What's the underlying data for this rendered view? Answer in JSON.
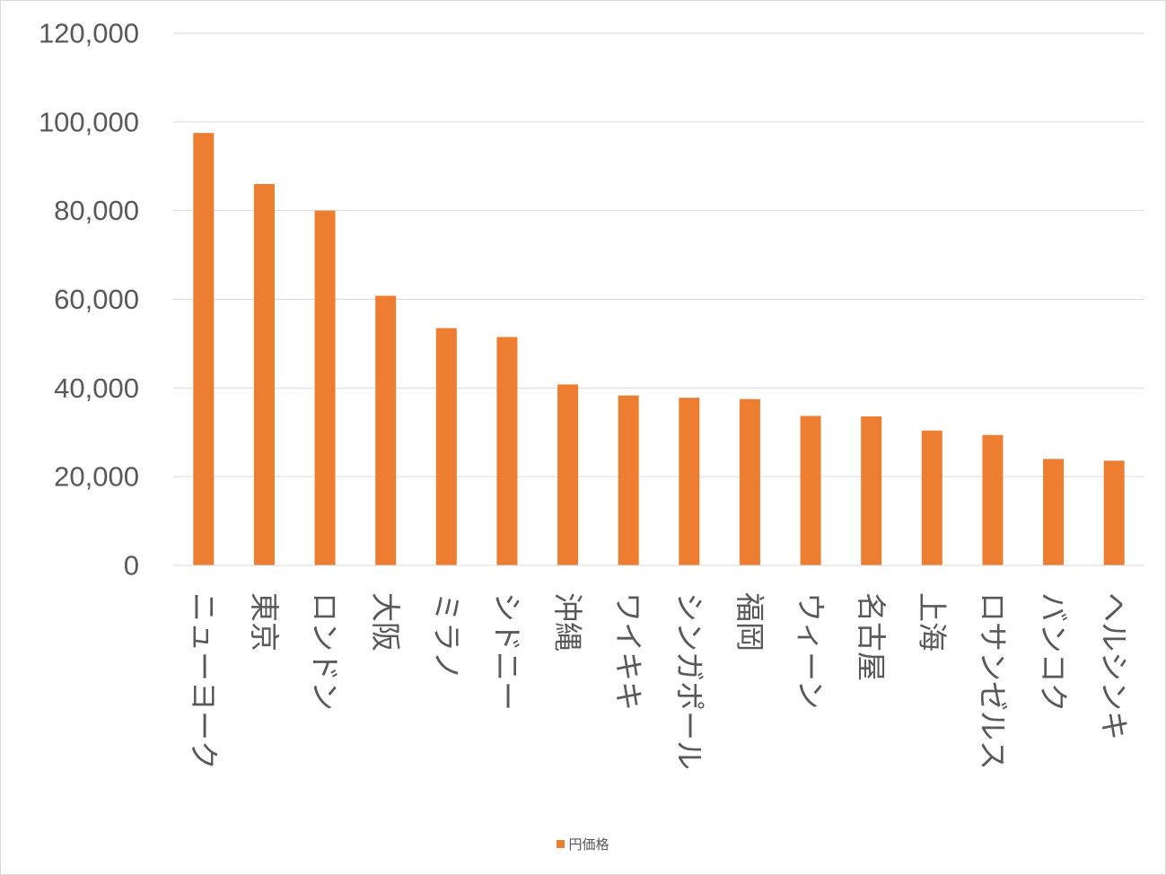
{
  "chart_data": {
    "type": "bar",
    "categories": [
      "ニューヨーク",
      "東京",
      "ロンドン",
      "大阪",
      "ミラノ",
      "シドニー",
      "沖縄",
      "ワイキキ",
      "シンガポール",
      "福岡",
      "ウィーン",
      "名古屋",
      "上海",
      "ロサンゼルス",
      "バンコク",
      "ヘルシンキ"
    ],
    "series": [
      {
        "name": "円価格",
        "color": "#ED7D31",
        "values": [
          97500,
          86000,
          80000,
          60800,
          53500,
          51500,
          40800,
          38300,
          37800,
          37500,
          33700,
          33600,
          30400,
          29400,
          24000,
          23600
        ]
      }
    ],
    "ylim": [
      0,
      120000
    ],
    "yticks": [
      "0",
      "20,000",
      "40,000",
      "60,000",
      "80,000",
      "100,000",
      "120,000"
    ],
    "ytick_values": [
      0,
      20000,
      40000,
      60000,
      80000,
      100000,
      120000
    ],
    "grid": true,
    "legend_position": "bottom",
    "title": "",
    "xlabel": "",
    "ylabel": ""
  }
}
